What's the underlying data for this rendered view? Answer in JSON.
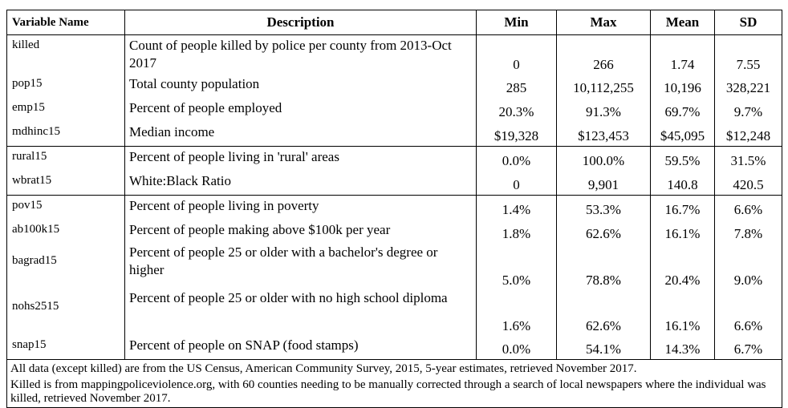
{
  "headers": {
    "variable": "Variable Name",
    "description": "Description",
    "min": "Min",
    "max": "Max",
    "mean": "Mean",
    "sd": "SD"
  },
  "rows": [
    {
      "var": "killed",
      "desc": "Count of people killed by police per county from 2013-Oct 2017",
      "min": "0",
      "max": "266",
      "mean": "1.74",
      "sd": "7.55"
    },
    {
      "var": "pop15",
      "desc": "Total county population",
      "min": "285",
      "max": "10,112,255",
      "mean": "10,196",
      "sd": "328,221"
    },
    {
      "var": "emp15",
      "desc": "Percent of people employed",
      "min": "20.3%",
      "max": "91.3%",
      "mean": "69.7%",
      "sd": "9.7%"
    },
    {
      "var": "mdhinc15",
      "desc": "Median income",
      "min": "$19,328",
      "max": "$123,453",
      "mean": "$45,095",
      "sd": "$12,248"
    },
    {
      "var": "rural15",
      "desc": "Percent of people living in 'rural' areas",
      "min": "0.0%",
      "max": "100.0%",
      "mean": "59.5%",
      "sd": "31.5%"
    },
    {
      "var": "wbrat15",
      "desc": "White:Black Ratio",
      "min": "0",
      "max": "9,901",
      "mean": "140.8",
      "sd": "420.5"
    },
    {
      "var": "pov15",
      "desc": "Percent of people living in poverty",
      "min": "1.4%",
      "max": "53.3%",
      "mean": "16.7%",
      "sd": "6.6%"
    },
    {
      "var": "ab100k15",
      "desc": "Percent of people making above $100k per year",
      "min": "1.8%",
      "max": "62.6%",
      "mean": "16.1%",
      "sd": "7.8%"
    },
    {
      "var": "bagrad15",
      "desc": "Percent of people 25 or older with a bachelor's degree or higher",
      "min": "5.0%",
      "max": "78.8%",
      "mean": "20.4%",
      "sd": "9.0%"
    },
    {
      "var": "nohs2515",
      "desc": "Percent of people 25 or older with no high school diploma",
      "min": "1.6%",
      "max": "62.6%",
      "mean": "16.1%",
      "sd": "6.6%"
    },
    {
      "var": "snap15",
      "desc": "Percent of people on SNAP (food stamps)",
      "min": "0.0%",
      "max": "54.1%",
      "mean": "14.3%",
      "sd": "6.7%"
    }
  ],
  "notes": [
    "All data (except killed) are from the US Census, American Community Survey, 2015, 5-year estimates, retrieved November 2017.",
    "Killed is from mappingpoliceviolence.org, with 60 counties needing to be manually corrected through a search of local newspapers where the individual was killed, retrieved November 2017."
  ]
}
